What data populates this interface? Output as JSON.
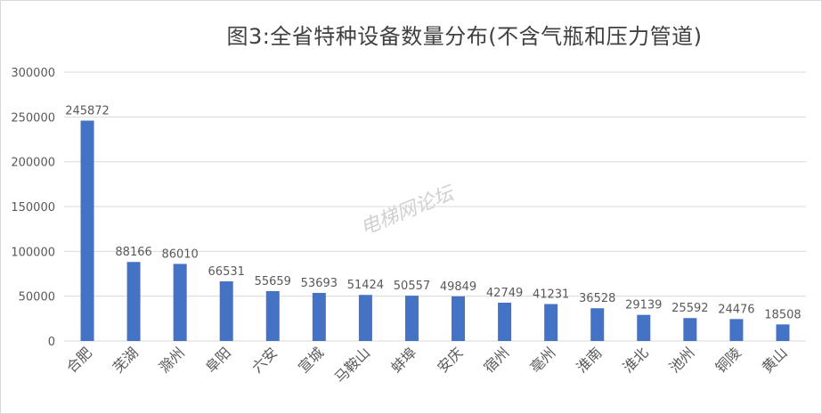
{
  "title": "图3:全省特种设备数量分布(不含气瓶和压力管道)",
  "watermark": "电梯网论坛",
  "colors": {
    "bar": "#4472c4",
    "grid": "#d9d9d9",
    "text": "#595959",
    "title": "#404040"
  },
  "chart_data": {
    "type": "bar",
    "title": "图3:全省特种设备数量分布(不含气瓶和压力管道)",
    "xlabel": "",
    "ylabel": "",
    "ylim": [
      0,
      300000
    ],
    "yticks": [
      0,
      50000,
      100000,
      150000,
      200000,
      250000,
      300000
    ],
    "grid": true,
    "categories": [
      "合肥",
      "芜湖",
      "滁州",
      "阜阳",
      "六安",
      "宣城",
      "马鞍山",
      "蚌埠",
      "安庆",
      "宿州",
      "亳州",
      "淮南",
      "淮北",
      "池州",
      "铜陵",
      "黄山"
    ],
    "values": [
      245872,
      88166,
      86010,
      66531,
      55659,
      53693,
      51424,
      50557,
      49849,
      42749,
      41231,
      36528,
      29139,
      25592,
      24476,
      18508
    ]
  }
}
